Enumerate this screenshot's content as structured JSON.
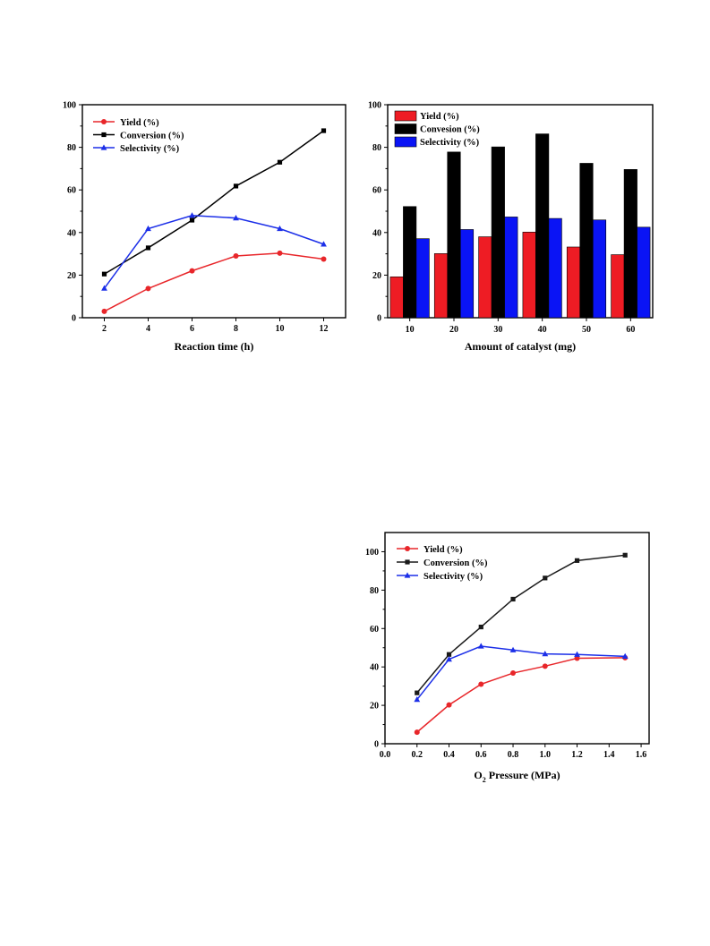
{
  "chart_data": [
    {
      "id": "time",
      "type": "line",
      "title": "",
      "xlabel": "Reaction time (h)",
      "ylabel": "",
      "x": [
        2,
        4,
        6,
        8,
        10,
        12
      ],
      "xticks": [
        "2",
        "4",
        "6",
        "8",
        "10",
        "12"
      ],
      "xlim": [
        1,
        13
      ],
      "ylim": [
        0,
        100
      ],
      "yticks": [
        "0",
        "20",
        "40",
        "60",
        "80",
        "100"
      ],
      "legend_position": "top-left",
      "series": [
        {
          "name": "Yield (%)",
          "color": "#e8262a",
          "marker": "circle",
          "values": [
            3,
            13.7,
            22,
            29,
            30.3,
            27.5
          ]
        },
        {
          "name": "Conversion (%)",
          "color": "#000000",
          "marker": "square",
          "values": [
            20.5,
            32.8,
            45.8,
            61.8,
            73,
            87.8
          ]
        },
        {
          "name": "Selectivity (%)",
          "color": "#1c2fe8",
          "marker": "triangle",
          "values": [
            13.8,
            41.8,
            48,
            46.8,
            41.8,
            34.5
          ]
        }
      ]
    },
    {
      "id": "catalyst",
      "type": "bar",
      "title": "",
      "xlabel": "Amount of catalyst (mg)",
      "ylabel": "",
      "categories": [
        "10",
        "20",
        "30",
        "40",
        "50",
        "60"
      ],
      "ylim": [
        0,
        100
      ],
      "yticks": [
        "0",
        "20",
        "40",
        "60",
        "80",
        "100"
      ],
      "legend_position": "top-left",
      "series": [
        {
          "name": "Yield (%)",
          "color": "#ee1c24",
          "values": [
            19.2,
            30.1,
            38,
            40.2,
            33.2,
            29.6
          ]
        },
        {
          "name": "Convesion (%)",
          "color": "#000000",
          "values": [
            52.2,
            77.8,
            80.2,
            86.3,
            72.5,
            69.6
          ]
        },
        {
          "name": "Selectivity (%)",
          "color": "#0a14f5",
          "values": [
            37.1,
            41.4,
            47.3,
            46.6,
            45.9,
            42.5
          ]
        }
      ]
    },
    {
      "id": "pressure",
      "type": "line",
      "title": "",
      "xlabel_main": "O",
      "xlabel_sub": "2",
      "xlabel_rest": " Pressure (MPa)",
      "ylabel": "",
      "x": [
        0.2,
        0.4,
        0.6,
        0.8,
        1.0,
        1.2,
        1.5
      ],
      "xlim": [
        0.0,
        1.65
      ],
      "xticks": [
        "0.0",
        "0.2",
        "0.4",
        "0.6",
        "0.8",
        "1.0",
        "1.2",
        "1.4",
        "1.6"
      ],
      "ylim": [
        0,
        110
      ],
      "yticks": [
        "0",
        "20",
        "40",
        "60",
        "80",
        "100"
      ],
      "legend_position": "top-left",
      "series": [
        {
          "name": "Yield (%)",
          "color": "#e8262a",
          "marker": "circle",
          "values": [
            6,
            20.2,
            31,
            36.8,
            40.4,
            44.5,
            44.8
          ]
        },
        {
          "name": "Conversion (%)",
          "color": "#1a1a1a",
          "marker": "square",
          "values": [
            26.5,
            46.5,
            60.8,
            75.3,
            86.3,
            95.4,
            98.2
          ]
        },
        {
          "name": "Selectivity (%)",
          "color": "#1c2fe8",
          "marker": "triangle",
          "values": [
            23,
            44,
            50.8,
            48.8,
            46.8,
            46.5,
            45.5
          ]
        }
      ]
    }
  ]
}
